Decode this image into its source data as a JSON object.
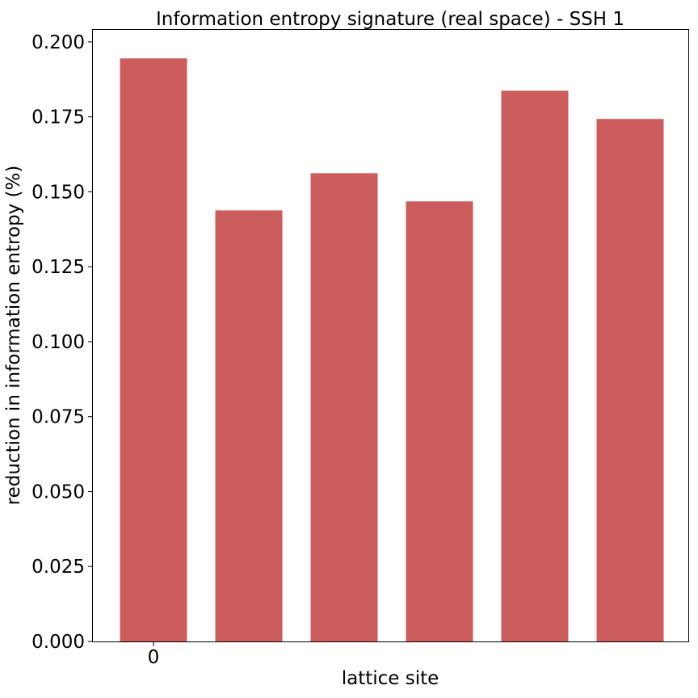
{
  "chart_data": {
    "type": "bar",
    "title": "Information entropy signature (real space) - SSH 1",
    "xlabel": "lattice site",
    "ylabel": "reduction in information entropy (%)",
    "values": [
      0.1945,
      0.1438,
      0.1562,
      0.1468,
      0.1837,
      0.1743
    ],
    "x_tick_labels": [
      "0"
    ],
    "ylim": [
      0,
      0.204
    ],
    "y_ticks": [
      "0.000",
      "0.025",
      "0.050",
      "0.075",
      "0.100",
      "0.125",
      "0.150",
      "0.175",
      "0.200"
    ],
    "bar_color": "#cd5c5c",
    "grid": false,
    "legend": "none"
  }
}
